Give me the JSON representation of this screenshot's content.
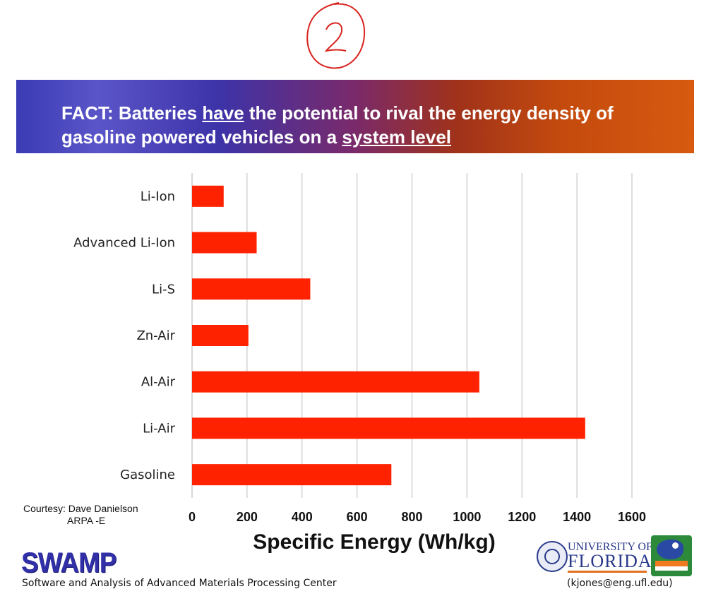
{
  "banner": {
    "title_part1": "FACT: Batteries ",
    "title_underline1": "have",
    "title_part2": " the potential to rival the energy density of gasoline powered vehicles on a ",
    "title_underline2": "system level"
  },
  "chart_data": {
    "type": "bar",
    "orientation": "horizontal",
    "categories": [
      "Li-Ion",
      "Advanced Li-Ion",
      "Li-S",
      "Zn-Air",
      "Al-Air",
      "Li-Air",
      "Gasoline"
    ],
    "values": [
      115,
      235,
      430,
      205,
      1045,
      1430,
      725
    ],
    "xlabel": "Specific Energy  (Wh/kg)",
    "xlim": [
      0,
      1600
    ],
    "xticks": [
      "0",
      "200",
      "400",
      "600",
      "800",
      "1000",
      "1200",
      "1400",
      "1600"
    ],
    "grid": true,
    "bar_color": "#ff2200"
  },
  "courtesy": {
    "line1": "Courtesy: Dave Danielson",
    "line2": "ARPA -E"
  },
  "footer": {
    "logo": "SWAMP",
    "center_name": "Software and Analysis of Advanced Materials Processing Center",
    "contact": "(kjones@eng.ufl.edu)",
    "university_line1": "UNIVERSITY OF",
    "university_line2": "FLORIDA"
  },
  "handwritten_mark": "2",
  "colors": {
    "accent_orange": "#d85a10",
    "accent_blue": "#3b3bb5"
  }
}
